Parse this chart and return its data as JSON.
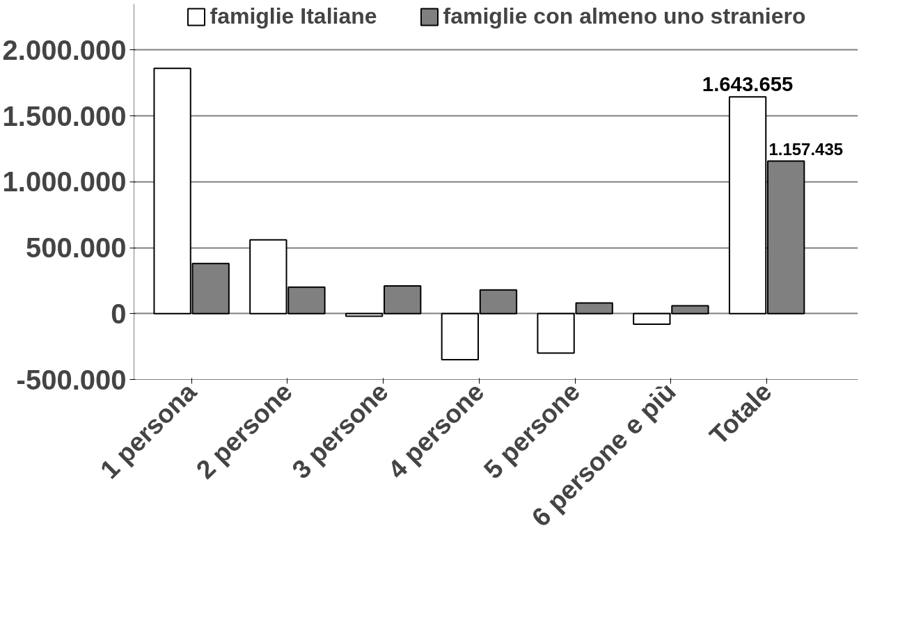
{
  "chart_data": {
    "type": "bar",
    "categories": [
      "1 persona",
      "2 persone",
      "3 persone",
      "4 persone",
      "5 persone",
      "6 persone e più",
      "Totale"
    ],
    "series": [
      {
        "name": "famiglie Italiane",
        "color": "#ffffff",
        "values": [
          1860000,
          560000,
          -20000,
          -350000,
          -300000,
          -80000,
          1643655
        ],
        "value_labels": [
          null,
          null,
          null,
          null,
          null,
          null,
          "1.643.655"
        ]
      },
      {
        "name": "famiglie con almeno uno straniero",
        "color": "#808080",
        "values": [
          380000,
          200000,
          210000,
          180000,
          80000,
          60000,
          1157435
        ],
        "value_labels": [
          null,
          null,
          null,
          null,
          null,
          null,
          "1.157.435"
        ]
      }
    ],
    "ylim": [
      -500000,
      2350000
    ],
    "yticks": [
      {
        "value": -500000,
        "label": "-500.000"
      },
      {
        "value": 0,
        "label": "0"
      },
      {
        "value": 500000,
        "label": "500.000"
      },
      {
        "value": 1000000,
        "label": "1.000.000"
      },
      {
        "value": 1500000,
        "label": "1.500.000"
      },
      {
        "value": 2000000,
        "label": "2.000.000"
      }
    ],
    "grid": "y",
    "legend": "top"
  }
}
